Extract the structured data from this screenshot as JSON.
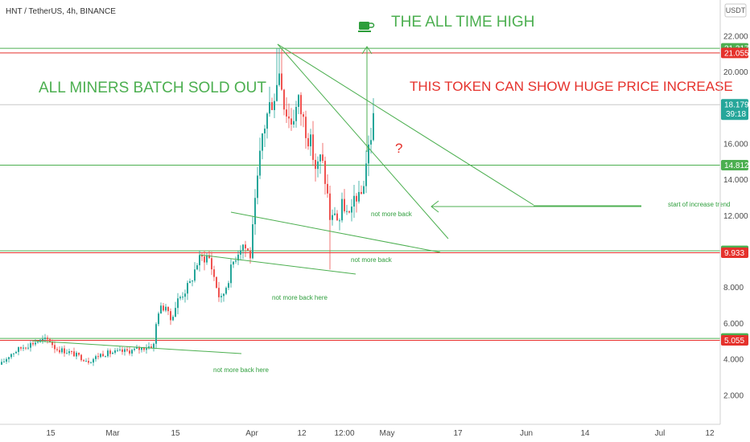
{
  "header": {
    "symbol": "HNT / TetherUS, 4h, BINANCE",
    "currency": "USDT"
  },
  "colors": {
    "up": "#26a69a",
    "down": "#ef5350",
    "line_green": "#4caf50",
    "line_red": "#e5322c",
    "text_green": "#2e9e3c",
    "price_pill": "#26a69a",
    "axis_text": "#4a4a4a"
  },
  "icons": {
    "ath_marker": "coffee-cup-icon"
  },
  "chart_data": {
    "type": "candlestick",
    "x_tick_labels": [
      "15",
      "Mar",
      "15",
      "Apr",
      "12",
      "12:00",
      "May",
      "17",
      "Jun",
      "14",
      "Jul",
      "12"
    ],
    "y_ticks": [
      2.0,
      4.0,
      6.0,
      8.0,
      10.0,
      12.0,
      14.0,
      16.0,
      18.0,
      20.0,
      22.0
    ],
    "y_tick_labels": [
      "2.000",
      "4.000",
      "6.000",
      "8.000",
      "10.000",
      "12.000",
      "14.000",
      "16.000",
      "18.000",
      "20.000",
      "22.000"
    ],
    "ylim": [
      0.5,
      23.0
    ],
    "grid": false,
    "current_price": {
      "value": "18.179",
      "countdown": "39:18"
    },
    "price_tags": [
      {
        "value": "21.317",
        "type": "green"
      },
      {
        "value": "21.055",
        "type": "red"
      },
      {
        "value": "14.812",
        "type": "green"
      },
      {
        "value": "10.038",
        "type": "green"
      },
      {
        "value": "9.933",
        "type": "red"
      },
      {
        "value": "5.160",
        "type": "green"
      },
      {
        "value": "5.055",
        "type": "red"
      }
    ],
    "horizontal_levels": [
      {
        "price": 21.317,
        "color": "green"
      },
      {
        "price": 21.055,
        "color": "red"
      },
      {
        "price": 14.812,
        "color": "green"
      },
      {
        "price": 10.038,
        "color": "green"
      },
      {
        "price": 9.933,
        "color": "red"
      },
      {
        "price": 5.16,
        "color": "green"
      },
      {
        "price": 5.055,
        "color": "red"
      },
      {
        "price": 18.179,
        "color": "gray"
      }
    ],
    "ohlc_summary": [
      {
        "period": "mid-Feb",
        "low": 3.6,
        "high": 5.3
      },
      {
        "period": "late-Feb",
        "low": 3.5,
        "high": 4.6
      },
      {
        "period": "Mar",
        "low": 3.9,
        "high": 4.9
      },
      {
        "period": "mid-Mar",
        "low": 5.5,
        "high": 8.8
      },
      {
        "period": "late-Mar",
        "low": 6.5,
        "high": 10.3
      },
      {
        "period": "early-Apr",
        "low": 9.8,
        "high": 21.317
      },
      {
        "period": "mid-Apr",
        "low": 9.0,
        "high": 19.5
      },
      {
        "period": "late-Apr",
        "low": 11.0,
        "high": 18.5
      }
    ],
    "annotations": [
      {
        "text": "THE ALL TIME HIGH",
        "style": "big-green"
      },
      {
        "text": "ALL MINERS BATCH SOLD OUT",
        "style": "big-green"
      },
      {
        "text": "THIS TOKEN CAN SHOW HUGE PRICE INCREASE",
        "style": "big-red"
      },
      {
        "text": "?",
        "style": "big-red"
      },
      {
        "text": "start of increase trend",
        "style": "small"
      },
      {
        "text": "not more back",
        "style": "small"
      },
      {
        "text": "not more back",
        "style": "small"
      },
      {
        "text": "not more back here",
        "style": "small"
      },
      {
        "text": "not more back here",
        "style": "small"
      }
    ]
  }
}
